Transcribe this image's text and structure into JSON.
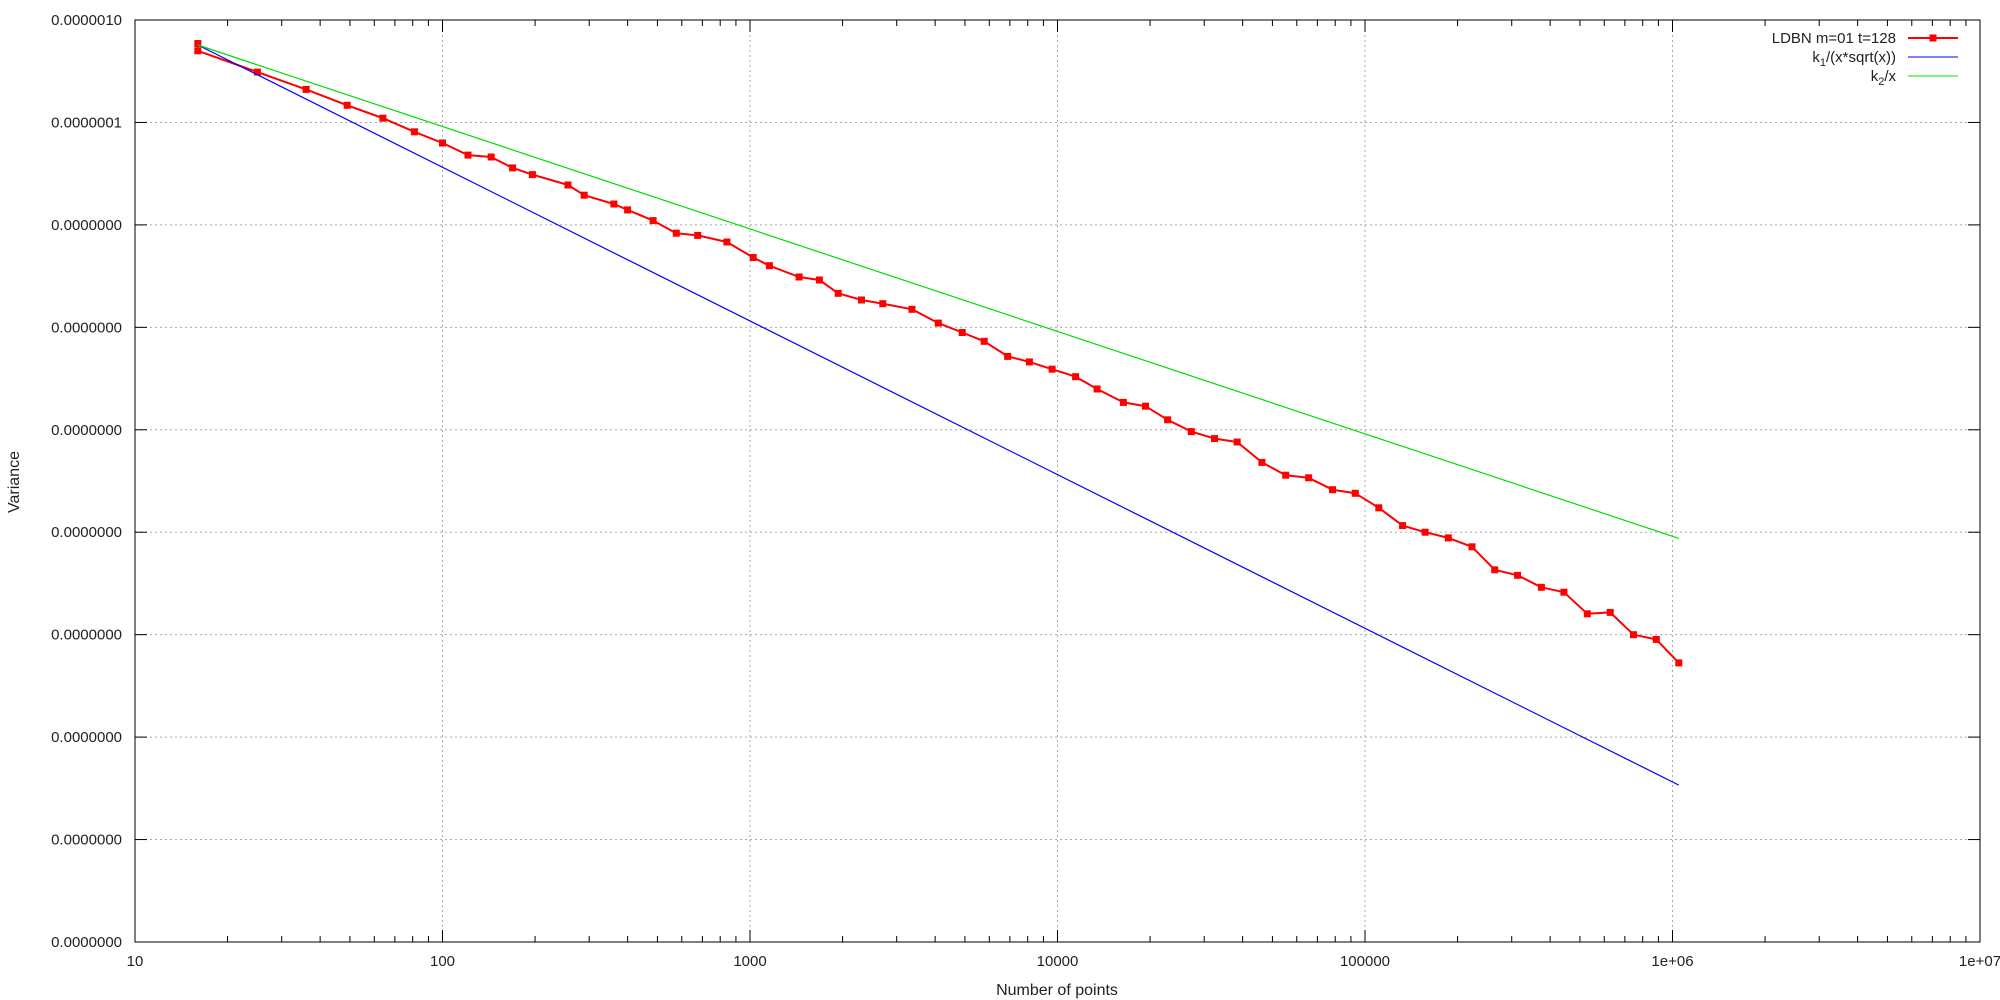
{
  "chart_data": {
    "type": "line",
    "title": "",
    "xlabel": "Number of points",
    "ylabel": "Variance",
    "xscale": "log",
    "yscale": "log",
    "xlim": [
      10,
      10000000
    ],
    "ylim": [
      1e-15,
      1e-06
    ],
    "grid": true,
    "legend_position": "top-right",
    "x_ticks": [
      {
        "value": 10,
        "label": "10"
      },
      {
        "value": 100,
        "label": "100"
      },
      {
        "value": 1000,
        "label": "1000"
      },
      {
        "value": 10000,
        "label": "10000"
      },
      {
        "value": 100000,
        "label": "100000"
      },
      {
        "value": 1000000,
        "label": "1e+06"
      },
      {
        "value": 10000000,
        "label": "1e+07"
      }
    ],
    "y_ticks": [
      {
        "value": 1e-06,
        "label": "0.0000010"
      },
      {
        "value": 1e-07,
        "label": "0.0000001"
      },
      {
        "value": 1e-08,
        "label": "0.0000000"
      },
      {
        "value": 1e-09,
        "label": "0.0000000"
      },
      {
        "value": 1e-10,
        "label": "0.0000000"
      },
      {
        "value": 1e-11,
        "label": "0.0000000"
      },
      {
        "value": 1e-12,
        "label": "0.0000000"
      },
      {
        "value": 1e-13,
        "label": "0.0000000"
      },
      {
        "value": 1e-14,
        "label": "0.0000000"
      },
      {
        "value": 1e-15,
        "label": "0.0000000"
      }
    ],
    "series": [
      {
        "name": "LDBN m=01 t=128",
        "color": "#ff0000",
        "markers": true,
        "x": [
          16,
          16,
          25,
          36,
          49,
          64,
          81,
          100,
          121,
          144,
          169,
          196,
          256,
          289,
          361,
          400,
          484,
          576,
          676,
          841,
          1024,
          1156,
          1444,
          1681,
          1936,
          2304,
          2704,
          3364,
          4096,
          4900,
          5776,
          6889,
          8100,
          9604,
          11449,
          13456,
          16384,
          19321,
          22801,
          27225,
          32400,
          38416,
          46225,
          55225,
          65536,
          78400,
          93025,
          110889,
          132496,
          156816,
          186624,
          222784,
          264196,
          313600,
          374544,
          443556,
          528529,
          627264,
          746496,
          885481,
          1048576
        ],
        "y": [
          5.9e-07,
          5e-07,
          3.1e-07,
          2.1e-07,
          1.47e-07,
          1.1e-07,
          8.1e-08,
          6.3e-08,
          4.8e-08,
          4.6e-08,
          3.6e-08,
          3.1e-08,
          2.45e-08,
          1.95e-08,
          1.6e-08,
          1.4e-08,
          1.1e-08,
          8.3e-09,
          7.9e-09,
          6.8e-09,
          4.8e-09,
          4e-09,
          3.1e-09,
          2.9e-09,
          2.15e-09,
          1.85e-09,
          1.7e-09,
          1.5e-09,
          1.1e-09,
          8.9e-10,
          7.3e-10,
          5.2e-10,
          4.6e-10,
          3.9e-10,
          3.3e-10,
          2.5e-10,
          1.85e-10,
          1.7e-10,
          1.25e-10,
          9.6e-11,
          8.2e-11,
          7.6e-11,
          4.8e-11,
          3.6e-11,
          3.4e-11,
          2.6e-11,
          2.4e-11,
          1.73e-11,
          1.16e-11,
          1e-11,
          8.8e-12,
          7.2e-12,
          4.3e-12,
          3.8e-12,
          2.9e-12,
          2.6e-12,
          1.6e-12,
          1.65e-12,
          1e-12,
          9e-13,
          5.3e-13
        ]
      },
      {
        "name": "k_1/(x*sqrt(x))",
        "color": "#0000ff",
        "markers": false,
        "x": [
          16,
          1048576
        ],
        "y": [
          5.7e-07,
          3.4e-14
        ]
      },
      {
        "name": "k_2/x",
        "color": "#00dd00",
        "markers": false,
        "x": [
          16,
          1048576
        ],
        "y": [
          5.7e-07,
          8.7e-12
        ]
      }
    ]
  },
  "legend": {
    "series_1": "LDBN m=01 t=128",
    "series_2_k": "k",
    "series_2_sub": "1",
    "series_2_rest": "/(x*sqrt(x))",
    "series_3_k": "k",
    "series_3_sub": "2",
    "series_3_rest": "/x"
  }
}
